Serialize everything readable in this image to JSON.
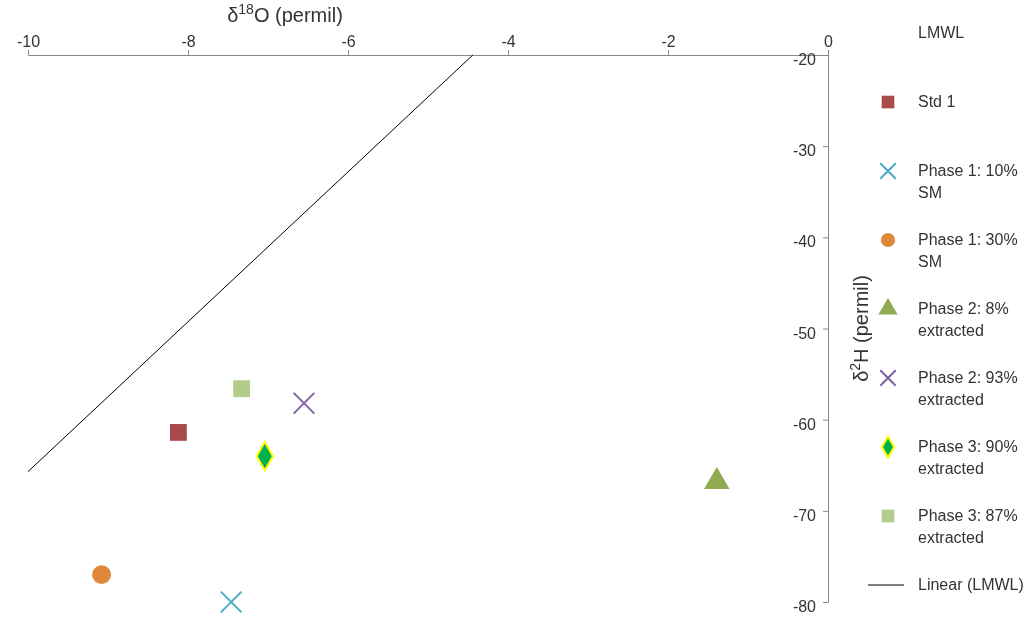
{
  "chart_data": {
    "type": "scatter",
    "title": "LMWL",
    "xlabel": "δ$^{18}$O (permil)",
    "ylabel": "δ$^{2}$H (permil)",
    "xlim": [
      -10,
      0
    ],
    "xticks": [
      -10,
      -8,
      -6,
      -4,
      -2,
      0
    ],
    "ylim": [
      -80,
      -20
    ],
    "yticks": [
      -80,
      -70,
      -60,
      -50,
      -40,
      -30,
      -20
    ],
    "grid": false,
    "legend": "right",
    "series": [
      {
        "name": "Std 1",
        "color": "#a94a4a",
        "marker": "square",
        "x": [
          -8.12
        ],
        "values": [
          -61.4
        ]
      },
      {
        "name": "Phase 1: 10% SM",
        "color": "#4bacc6",
        "marker": "cross",
        "x": [
          -7.46
        ],
        "values": [
          -80
        ]
      },
      {
        "name": "Phase 1: 30% SM",
        "color": "#e0883a",
        "marker": "circle",
        "x": [
          -9.08
        ],
        "values": [
          -77
        ]
      },
      {
        "name": "Phase 2: 8% extracted",
        "color": "#8faa4f",
        "marker": "triangle",
        "x": [
          -1.39
        ],
        "values": [
          -66.8
        ]
      },
      {
        "name": "Phase 2: 93% extracted",
        "color": "#8064a2",
        "marker": "cross",
        "x": [
          -6.55
        ],
        "values": [
          -58.2
        ]
      },
      {
        "name": "Phase 3: 90% extracted",
        "color": "#00b050",
        "marker": "diamond",
        "x": [
          -7.04
        ],
        "values": [
          -64
        ]
      },
      {
        "name": "Phase 3: 87% extracted",
        "color": "#b3cc8c",
        "marker": "square",
        "x": [
          -7.33
        ],
        "values": [
          -56.6
        ]
      },
      {
        "name": "Linear (LMWL)",
        "type": "line",
        "color": "#000000",
        "marker": "none",
        "x": [
          -10,
          -4.44
        ],
        "values": [
          -65.7,
          -20
        ]
      }
    ]
  }
}
